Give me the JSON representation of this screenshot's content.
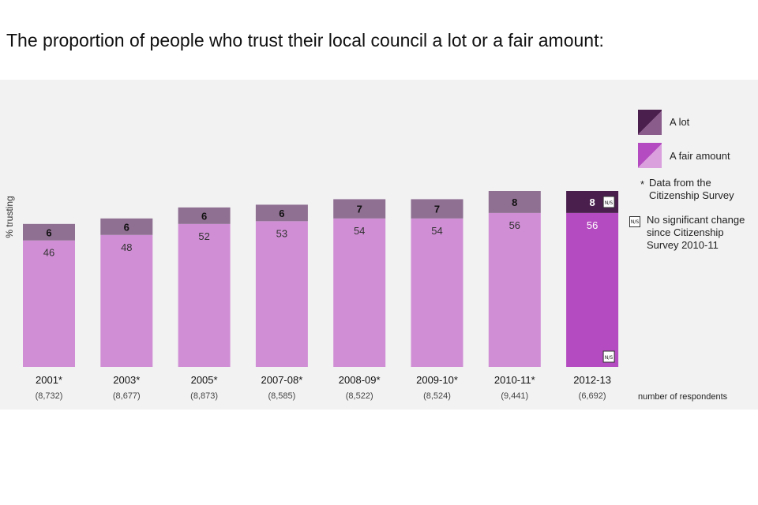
{
  "title": "The proportion of people who trust their local council a lot or a fair amount:",
  "legend": {
    "a_lot": "A lot",
    "fair_amount": "A fair amount",
    "asterisk_symbol": "*",
    "asterisk_note": "Data from the Citizenship Survey",
    "ns_symbol": "N/S",
    "ns_note": "No significant change since Citizenship Survey 2010-11"
  },
  "respondents_label": "number of respondents",
  "colors": {
    "a_lot": "#8f6f92",
    "fair_amount": "#d08fd5",
    "a_lot_highlight": "#4a1f4d",
    "fair_amount_highlight": "#b54bc0",
    "panel": "#f2f2f2"
  },
  "chart_data": {
    "type": "bar",
    "stacked": true,
    "ylabel": "% trusting",
    "categories": [
      "2001*",
      "2003*",
      "2005*",
      "2007-08*",
      "2008-09*",
      "2009-10*",
      "2010-11*",
      "2012-13"
    ],
    "respondents": [
      "(8,732)",
      "(8,677)",
      "(8,873)",
      "(8,585)",
      "(8,522)",
      "(8,524)",
      "(9,441)",
      "(6,692)"
    ],
    "series": [
      {
        "name": "A fair amount",
        "values": [
          46,
          48,
          52,
          53,
          54,
          54,
          56,
          56
        ]
      },
      {
        "name": "A lot",
        "values": [
          6,
          6,
          6,
          6,
          7,
          7,
          8,
          8
        ]
      }
    ],
    "highlight_index": 7,
    "ylim": [
      0,
      64
    ],
    "grid": false,
    "legend_position": "right"
  }
}
